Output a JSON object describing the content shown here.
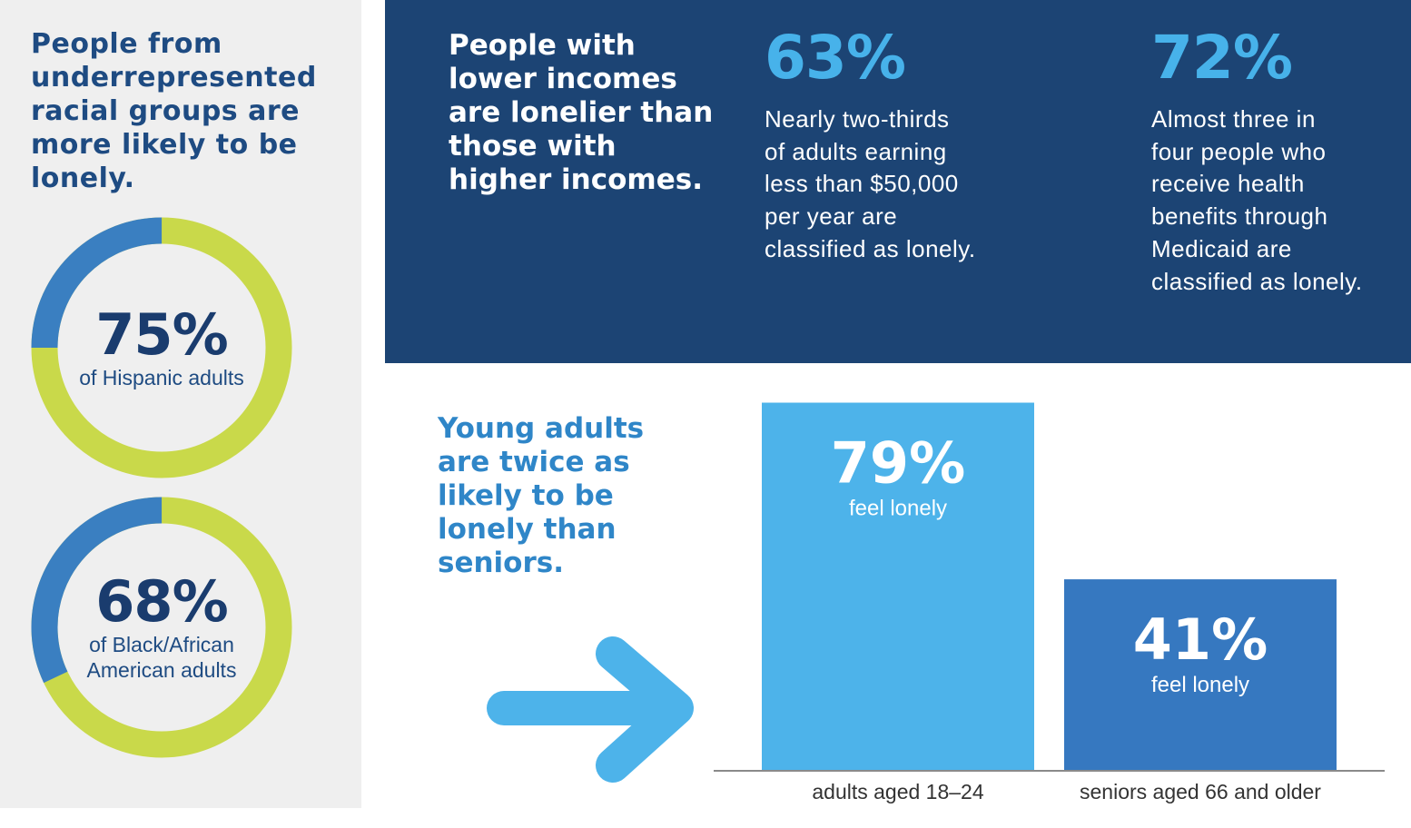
{
  "left": {
    "heading": "People from underrepresented racial groups are more likely to be lonely.",
    "donuts": [
      {
        "percent": "75%",
        "value": 75,
        "label": "of Hispanic adults"
      },
      {
        "percent": "68%",
        "value": 68,
        "label": "of Black/African American adults"
      }
    ]
  },
  "income": {
    "heading": "People with lower incomes are lonelier than those with higher incomes.",
    "stats": [
      {
        "value": "63%",
        "lines": [
          "Nearly two-thirds",
          "of adults earning",
          "less than $50,000",
          "per year are",
          "classified as lonely."
        ]
      },
      {
        "value": "72%",
        "lines": [
          "Almost three in",
          "four people who",
          "receive health",
          "benefits through",
          "Medicaid are",
          "classified as lonely."
        ]
      }
    ]
  },
  "young": {
    "heading": "Young adults are twice as likely to be lonely than seniors."
  },
  "colors": {
    "navy": "#1c4474",
    "donut_blue": "#3a7fc1",
    "donut_green": "#c9d94a",
    "bar_light": "#4db3ea",
    "bar_dark": "#3678c0",
    "accent_text": "#47b2ea",
    "arrow": "#4db3ea"
  },
  "icons": {
    "arrow": "right-arrow-icon"
  },
  "chart_data": {
    "type": "bar",
    "title": "",
    "xlabel": "",
    "ylabel": "",
    "ylim": [
      0,
      100
    ],
    "grid": false,
    "categories": [
      "adults aged 18–24",
      "seniors aged 66 and older"
    ],
    "values": [
      79,
      41
    ],
    "data_labels": [
      "79%",
      "41%"
    ],
    "bar_sublabel": "feel lonely"
  }
}
